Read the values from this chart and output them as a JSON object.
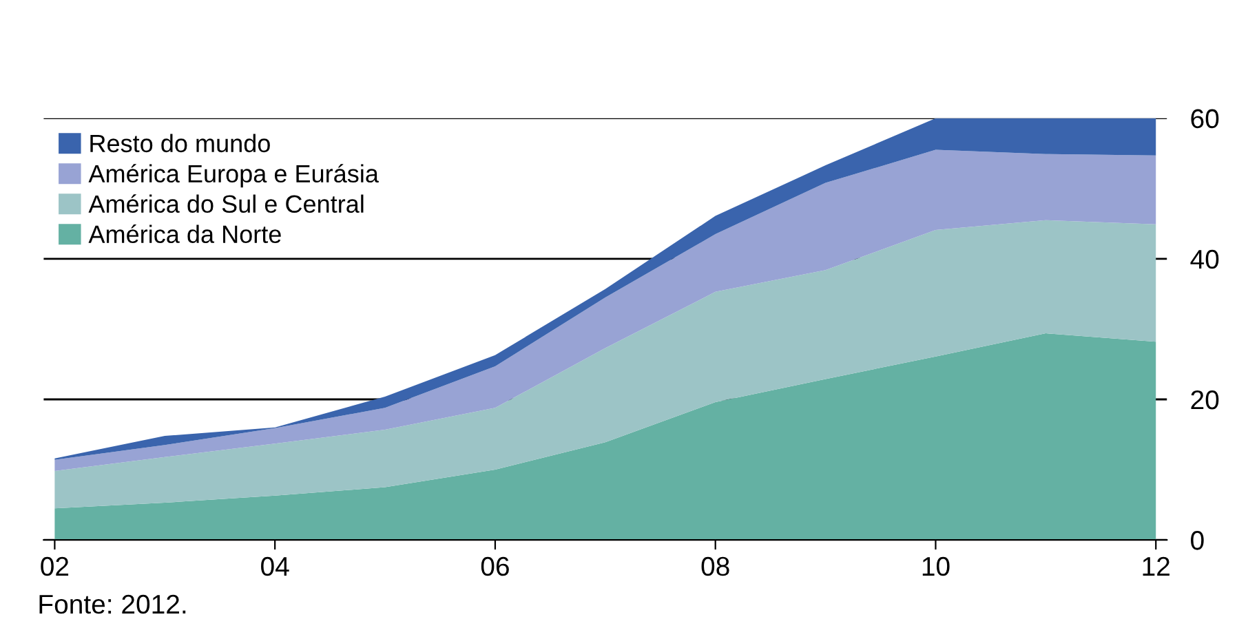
{
  "chart_data": {
    "type": "area",
    "stacked": true,
    "x": [
      2002,
      2003,
      2004,
      2005,
      2006,
      2007,
      2008,
      2009,
      2010,
      2011,
      2012
    ],
    "series": [
      {
        "name": "América da Norte",
        "color": "#64b1a3",
        "values": [
          4.5,
          5.3,
          6.3,
          7.5,
          10,
          13.9,
          19.6,
          22.9,
          26.1,
          29.4,
          28.2
        ]
      },
      {
        "name": "América do Sul e Central",
        "color": "#9cc4c6",
        "values": [
          5.3,
          6.5,
          7.4,
          8.2,
          8.8,
          13.4,
          15.7,
          15.5,
          18.0,
          16.1,
          16.7
        ]
      },
      {
        "name": "América Europa e Eurásia",
        "color": "#98a3d4",
        "values": [
          1.6,
          1.7,
          2.2,
          3.1,
          5.9,
          7.2,
          8.2,
          12.4,
          11.4,
          9.4,
          9.8
        ]
      },
      {
        "name": "Resto do mundo",
        "color": "#3a64ad",
        "values": [
          0.2,
          1.3,
          0.1,
          1.6,
          1.6,
          1.2,
          2.6,
          2.5,
          4.5,
          5.1,
          5.3
        ]
      }
    ],
    "xlim": [
      2001.9,
      2012.1
    ],
    "xticks": [
      {
        "value": 2002,
        "label": "02"
      },
      {
        "value": 2004,
        "label": "04"
      },
      {
        "value": 2006,
        "label": "06"
      },
      {
        "value": 2008,
        "label": "08"
      },
      {
        "value": 2010,
        "label": "10"
      },
      {
        "value": 2012,
        "label": "12"
      }
    ],
    "ylim": [
      0,
      60
    ],
    "yticks": [
      0,
      20,
      40,
      60
    ],
    "grid": "y",
    "legend": "top left",
    "annotations": [
      "Fonte: 2012."
    ]
  }
}
